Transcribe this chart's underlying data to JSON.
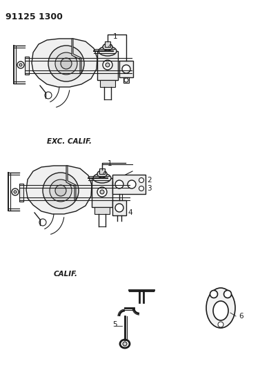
{
  "title": "91125 1300",
  "bg_color": "#ffffff",
  "text_color": "#1a1a1a",
  "caption_exc": "EXC. CALIF.",
  "caption_cal": "CALIF.",
  "fig_width": 3.9,
  "fig_height": 5.33,
  "dpi": 100,
  "labels": [
    "1",
    "2",
    "3",
    "4",
    "5",
    "6"
  ]
}
